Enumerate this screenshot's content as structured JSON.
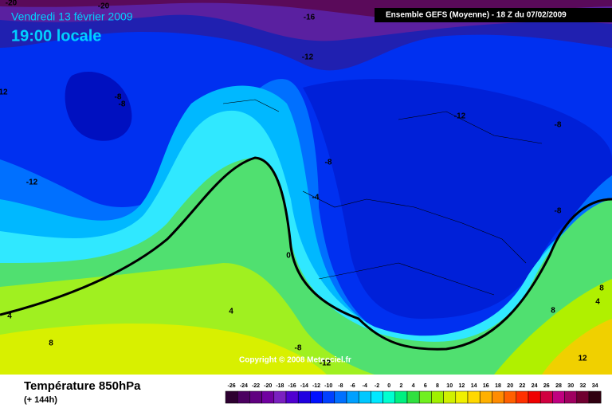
{
  "header": {
    "date": "Vendredi 13 février 2009",
    "time": "19:00 locale",
    "run": "Ensemble GEFS (Moyenne)  - 18 Z du 07/02/2009"
  },
  "map": {
    "contour_labels": [
      "-20",
      "-20",
      "-16",
      "-12",
      "-8",
      "-8",
      "12",
      "-12",
      "-12",
      "-8",
      "-8",
      "-4",
      "0",
      "-8",
      "4",
      "4",
      "8",
      "-8",
      "-12",
      "8",
      "4",
      "8",
      "12"
    ],
    "copyright": "Copyright © 2008 Meteociel.fr"
  },
  "footer": {
    "title": "Température 850hPa",
    "subtitle": "(+ 144h)"
  },
  "scale": {
    "labels": [
      "-26",
      "-24",
      "-22",
      "-20",
      "-18",
      "-16",
      "-14",
      "-12",
      "-10",
      "-8",
      "-6",
      "-4",
      "-2",
      "0",
      "2",
      "4",
      "6",
      "8",
      "10",
      "12",
      "14",
      "16",
      "18",
      "20",
      "22",
      "24",
      "26",
      "28",
      "30",
      "32",
      "34"
    ],
    "colors": [
      "#2d0030",
      "#4b0060",
      "#600080",
      "#7000a0",
      "#7a20c0",
      "#5000d0",
      "#2000e0",
      "#0010ff",
      "#0040ff",
      "#0070ff",
      "#00a0ff",
      "#00c8ff",
      "#00e8ff",
      "#00ffd0",
      "#00f080",
      "#30e040",
      "#70f020",
      "#a0f000",
      "#d0f000",
      "#f0f000",
      "#ffd800",
      "#ffb000",
      "#ff8c00",
      "#ff6000",
      "#ff3000",
      "#f00000",
      "#d00040",
      "#c00080",
      "#a00060",
      "#700030",
      "#300010"
    ]
  }
}
